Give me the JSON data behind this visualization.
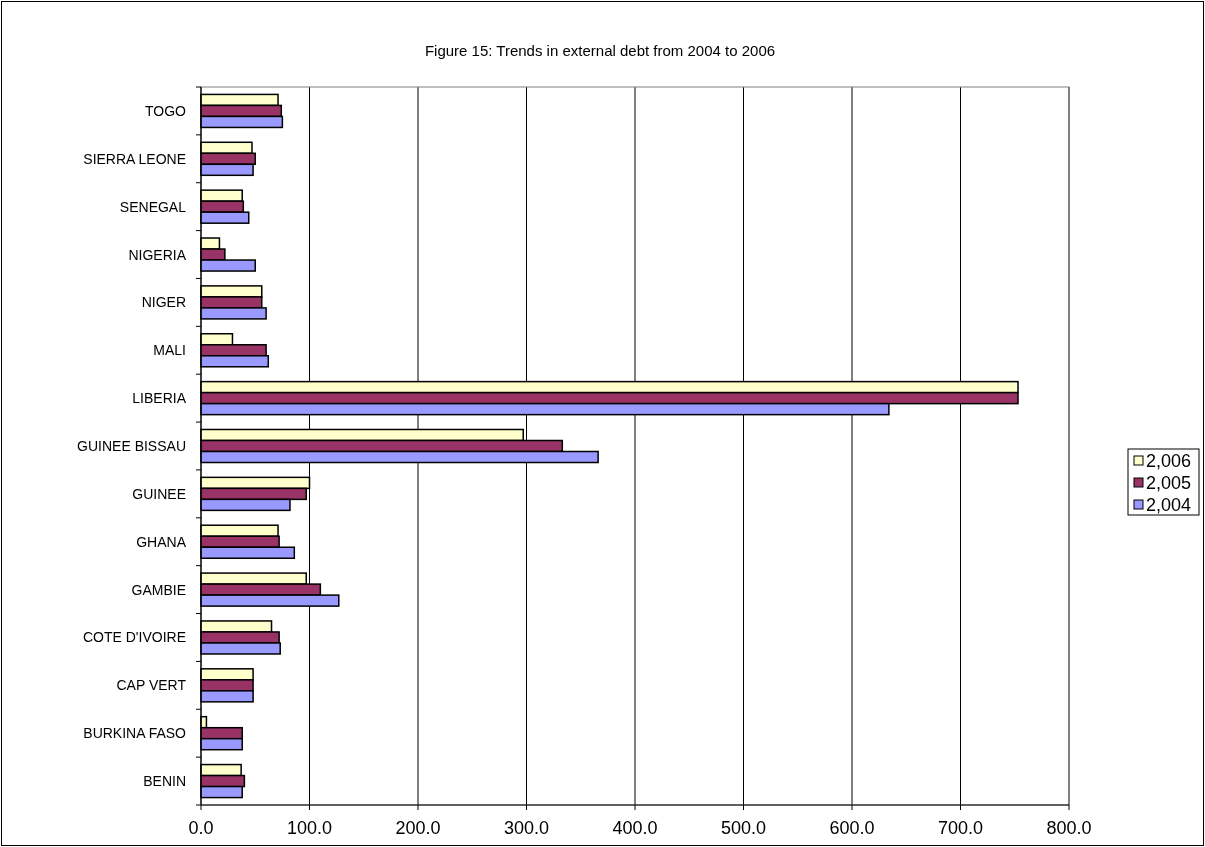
{
  "chart_data": {
    "type": "bar",
    "orientation": "horizontal",
    "title": "Figure 15: Trends in external debt from 2004 to 2006",
    "categories": [
      "TOGO",
      "SIERRA LEONE",
      "SENEGAL",
      "NIGERIA",
      "NIGER",
      "MALI",
      "LIBERIA",
      "GUINEE BISSAU",
      "GUINEE",
      "GHANA",
      "GAMBIE",
      "COTE D'IVOIRE",
      "CAP VERT",
      "BURKINA FASO",
      "BENIN"
    ],
    "series": [
      {
        "name": "2,006",
        "color": "#ffffcc",
        "values": [
          71,
          47,
          38,
          17,
          56,
          29,
          753,
          297,
          100,
          71,
          97,
          65,
          48,
          5,
          37
        ]
      },
      {
        "name": "2,005",
        "color": "#993366",
        "values": [
          74,
          50,
          39,
          22,
          56,
          60,
          753,
          333,
          97,
          72,
          110,
          72,
          48,
          38,
          40
        ]
      },
      {
        "name": "2,004",
        "color": "#9999ff",
        "values": [
          75,
          48,
          44,
          50,
          60,
          62,
          634,
          366,
          82,
          86,
          127,
          73,
          48,
          38,
          38
        ]
      }
    ],
    "xlim": [
      0,
      800
    ],
    "xticks": [
      {
        "value": 0,
        "label": "0.0"
      },
      {
        "value": 100,
        "label": "100.0"
      },
      {
        "value": 200,
        "label": "200.0"
      },
      {
        "value": 300,
        "label": "300.0"
      },
      {
        "value": 400,
        "label": "400.0"
      },
      {
        "value": 500,
        "label": "500.0"
      },
      {
        "value": 600,
        "label": "600.0"
      },
      {
        "value": 700,
        "label": "700.0"
      },
      {
        "value": 800,
        "label": "800.0"
      }
    ],
    "grid": "x",
    "legend": "right"
  }
}
